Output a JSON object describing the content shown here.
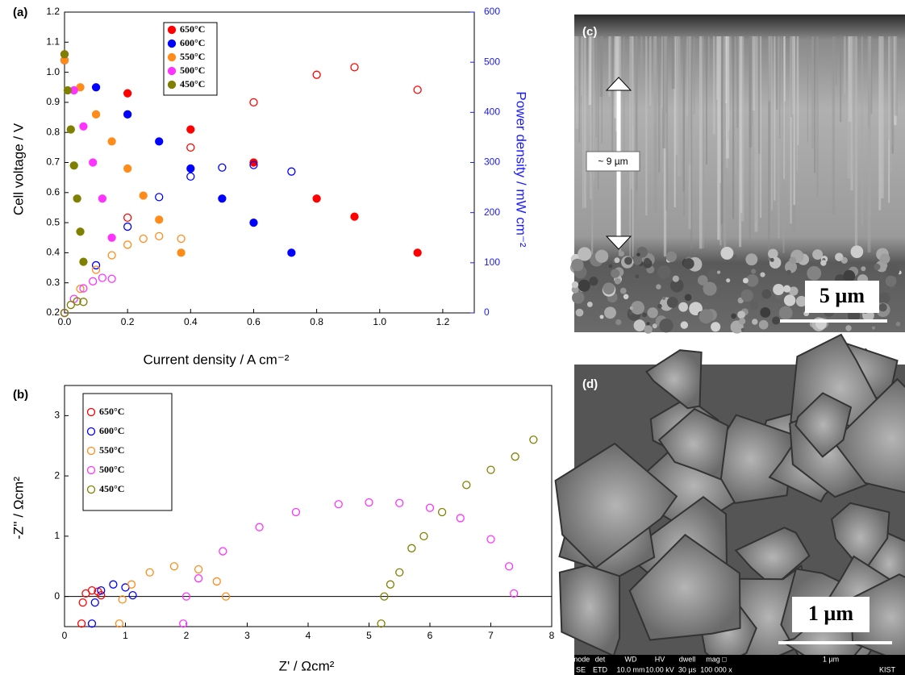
{
  "chart_data": [
    {
      "type": "scatter",
      "panel": "(a)",
      "x_label": "Current density / A cm⁻²",
      "y_label": "Cell voltage / V",
      "y2_label": "Power density / mW cm⁻²",
      "xlim": [
        0,
        1.3
      ],
      "xticks": [
        {
          "value": 0,
          "label": "0.0"
        },
        0.2,
        0.4,
        0.6,
        0.8,
        {
          "value": 1,
          "label": "1.0"
        },
        1.2
      ],
      "ylim": [
        0.2,
        1.2
      ],
      "yticks": [
        0.2,
        0.3,
        0.4,
        0.5,
        0.6,
        0.7,
        0.8,
        0.9,
        {
          "value": 1,
          "label": "1.0"
        },
        1.1,
        1.2
      ],
      "y2lim": [
        0,
        600
      ],
      "y2ticks": [
        0,
        100,
        200,
        300,
        400,
        500,
        600
      ],
      "y2_color": "#1a1aff",
      "series": [
        {
          "name": "650°C",
          "color": "#ff0000",
          "x": [
            0,
            0.2,
            0.4,
            0.6,
            0.8,
            0.92,
            1.12
          ],
          "values": [
            1.04,
            0.93,
            0.81,
            0.7,
            0.58,
            0.52,
            0.4
          ]
        },
        {
          "name": "600°C",
          "color": "#0000ff",
          "x": [
            0,
            0.1,
            0.2,
            0.3,
            0.4,
            0.5,
            0.6,
            0.72
          ],
          "values": [
            1.04,
            0.95,
            0.86,
            0.77,
            0.68,
            0.58,
            0.5,
            0.4
          ]
        },
        {
          "name": "550°C",
          "color": "#ff8c1a",
          "x": [
            0,
            0.05,
            0.1,
            0.15,
            0.2,
            0.25,
            0.3,
            0.37
          ],
          "values": [
            1.04,
            0.95,
            0.86,
            0.77,
            0.68,
            0.59,
            0.51,
            0.4
          ]
        },
        {
          "name": "500°C",
          "color": "#ff33ff",
          "x": [
            0,
            0.03,
            0.06,
            0.09,
            0.12,
            0.15
          ],
          "values": [
            1.06,
            0.94,
            0.82,
            0.7,
            0.58,
            0.45
          ]
        },
        {
          "name": "450°C",
          "color": "#808000",
          "x": [
            0,
            0.01,
            0.02,
            0.03,
            0.04,
            0.05,
            0.06
          ],
          "values": [
            1.06,
            0.94,
            0.81,
            0.69,
            0.58,
            0.47,
            0.37
          ]
        },
        {
          "color": "#ff0000",
          "axis": "y2",
          "x": [
            0,
            0.2,
            0.4,
            0.6,
            0.8,
            0.92,
            1.12
          ],
          "values": [
            0,
            190,
            330,
            420,
            475,
            490,
            445
          ]
        },
        {
          "color": "#0000ff",
          "axis": "y2",
          "x": [
            0,
            0.1,
            0.2,
            0.3,
            0.4,
            0.5,
            0.6,
            0.72
          ],
          "values": [
            0,
            95,
            172,
            231,
            272,
            290,
            295,
            282
          ]
        },
        {
          "color": "#ff8c1a",
          "axis": "y2",
          "x": [
            0,
            0.05,
            0.1,
            0.15,
            0.2,
            0.25,
            0.3,
            0.37
          ],
          "values": [
            0,
            48,
            86,
            115,
            136,
            148,
            153,
            148
          ]
        },
        {
          "color": "#ff33ff",
          "axis": "y2",
          "x": [
            0,
            0.03,
            0.06,
            0.09,
            0.12,
            0.15
          ],
          "values": [
            0,
            28,
            49,
            63,
            70,
            68
          ]
        },
        {
          "color": "#808000",
          "axis": "y2",
          "x": [
            0,
            0.02,
            0.04,
            0.06
          ],
          "values": [
            0,
            16,
            23,
            22
          ]
        }
      ]
    },
    {
      "type": "scatter",
      "panel": "(b)",
      "x_label": "Z' / Ωcm²",
      "y_label": "-Z'' / Ωcm²",
      "xlim": [
        0,
        8
      ],
      "xticks": [
        0,
        1,
        2,
        3,
        4,
        5,
        6,
        7,
        8
      ],
      "ylim": [
        -0.5,
        3.5
      ],
      "yticks": [
        0,
        1,
        2,
        3
      ],
      "series": [
        {
          "name": "650°C",
          "color": "#ff0000",
          "x": [
            0.28,
            0.3,
            0.35,
            0.45,
            0.55,
            0.6
          ],
          "values": [
            -0.45,
            -0.1,
            0.05,
            0.1,
            0.08,
            0.02
          ]
        },
        {
          "name": "600°C",
          "color": "#0000ff",
          "x": [
            0.45,
            0.5,
            0.6,
            0.8,
            1.0,
            1.12
          ],
          "values": [
            -0.45,
            -0.1,
            0.1,
            0.2,
            0.15,
            0.02
          ]
        },
        {
          "name": "550°C",
          "color": "#ff8c1a",
          "x": [
            0.9,
            0.95,
            1.1,
            1.4,
            1.8,
            2.2,
            2.5,
            2.65
          ],
          "values": [
            -0.45,
            -0.05,
            0.2,
            0.4,
            0.5,
            0.45,
            0.25,
            0
          ]
        },
        {
          "name": "500°C",
          "color": "#ff33ff",
          "x": [
            1.95,
            2.0,
            2.2,
            2.6,
            3.2,
            3.8,
            4.5,
            5.0,
            5.5,
            6.0,
            6.5,
            7.0,
            7.3,
            7.38
          ],
          "values": [
            -0.45,
            0,
            0.3,
            0.75,
            1.15,
            1.4,
            1.53,
            1.56,
            1.55,
            1.47,
            1.3,
            0.95,
            0.5,
            0.05
          ]
        },
        {
          "name": "450°C",
          "color": "#808000",
          "x": [
            5.2,
            5.25,
            5.35,
            5.5,
            5.7,
            5.9,
            6.2,
            6.6,
            7.0,
            7.4,
            7.7
          ],
          "values": [
            -0.45,
            0,
            0.2,
            0.4,
            0.8,
            1.0,
            1.4,
            1.85,
            2.1,
            2.32,
            2.6
          ]
        }
      ]
    }
  ],
  "images": {
    "c": {
      "panel": "(c)",
      "thickness": "~ 9 µm",
      "scale": "5 µm"
    },
    "d": {
      "panel": "(d)",
      "scale": "1 µm",
      "footer": [
        "mode",
        "SE",
        "det",
        "ETD",
        "WD",
        "10.0 mm",
        "HV",
        "10.00 kV",
        "dwell",
        "30 µs",
        "mag □",
        "100 000 x",
        "1 µm",
        "KIST"
      ]
    }
  }
}
